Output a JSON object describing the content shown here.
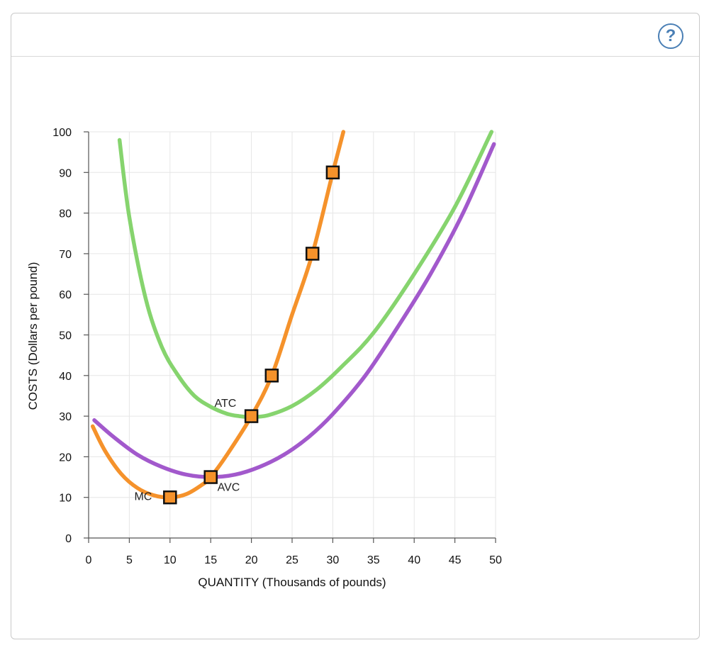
{
  "help_icon": {
    "name": "help-icon",
    "glyph": "?",
    "color": "#4a7fb5"
  },
  "chart_data": {
    "type": "line",
    "xlabel": "QUANTITY (Thousands of pounds)",
    "ylabel": "COSTS (Dollars per pound)",
    "xlim": [
      0,
      50
    ],
    "ylim": [
      0,
      100
    ],
    "xticks": [
      0,
      5,
      10,
      15,
      20,
      25,
      30,
      35,
      40,
      45,
      50
    ],
    "yticks": [
      0,
      10,
      20,
      30,
      40,
      50,
      60,
      70,
      80,
      90,
      100
    ],
    "grid": true,
    "series": [
      {
        "name": "ATC",
        "color": "#86d46e",
        "x": [
          3.8,
          5,
          7,
          9,
          11,
          13,
          15,
          17,
          18.5,
          20,
          22,
          25,
          28,
          31,
          35,
          40,
          45,
          49.5
        ],
        "y": [
          98,
          79,
          59,
          47,
          40,
          35,
          32.3,
          30.6,
          30.0,
          29.8,
          30.2,
          32.5,
          36.5,
          42,
          50.5,
          65,
          81.5,
          100
        ]
      },
      {
        "name": "AVC",
        "color": "#a259cc",
        "x": [
          0.7,
          3,
          6,
          9,
          12,
          15,
          18,
          21,
          24,
          27,
          30,
          34,
          38,
          42,
          46,
          49.8
        ],
        "y": [
          29,
          25,
          20.5,
          17.5,
          15.6,
          15.0,
          15.6,
          17.5,
          20.5,
          24.8,
          30.5,
          40,
          52,
          65,
          80,
          97
        ]
      },
      {
        "name": "MC",
        "color": "#f5922b",
        "x": [
          0.5,
          2,
          4,
          6,
          8,
          10,
          12,
          14,
          15,
          17,
          20,
          22.5,
          25,
          27.5,
          30,
          31.3
        ],
        "y": [
          27.5,
          21.5,
          15.8,
          12.3,
          10.5,
          10.0,
          10.8,
          13.2,
          15.0,
          20.5,
          30.0,
          40.0,
          55.0,
          70.0,
          90.0,
          100
        ]
      }
    ],
    "mc_points": {
      "x": [
        10,
        15,
        20,
        22.5,
        27.5,
        30
      ],
      "y": [
        10,
        15,
        30,
        40,
        70,
        90
      ],
      "color": "#f5922b"
    },
    "annotations": [
      {
        "text": "ATC",
        "x": 16.8,
        "y": 32.3
      },
      {
        "text": "AVC",
        "x": 17.2,
        "y": 11.6
      },
      {
        "text": "MC",
        "x": 6.7,
        "y": 9.3
      }
    ]
  }
}
